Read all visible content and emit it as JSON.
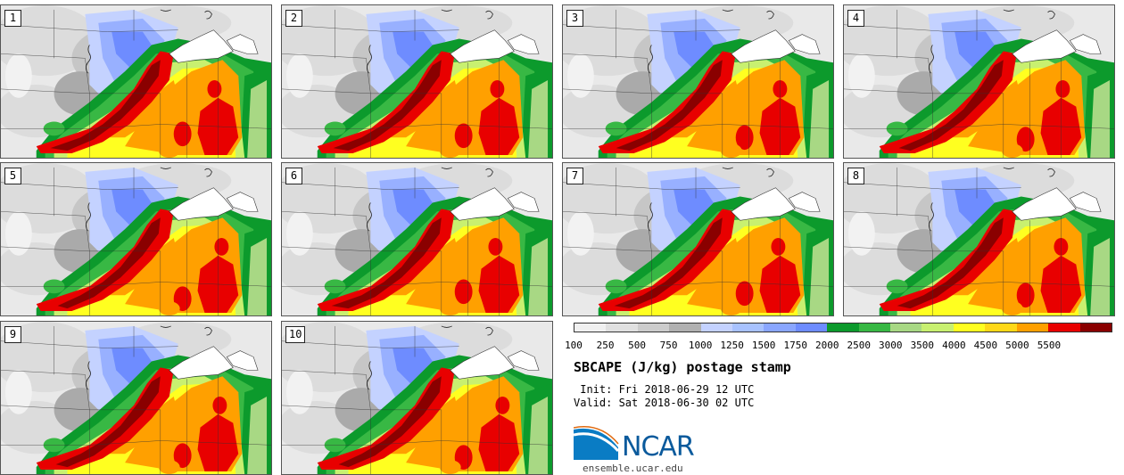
{
  "panels": [
    {
      "label": "1"
    },
    {
      "label": "2"
    },
    {
      "label": "3"
    },
    {
      "label": "4"
    },
    {
      "label": "5"
    },
    {
      "label": "6"
    },
    {
      "label": "7"
    },
    {
      "label": "8"
    },
    {
      "label": "9"
    },
    {
      "label": "10"
    }
  ],
  "colorbar": {
    "colors": [
      "#f0f0f0",
      "#e0e0e0",
      "#cccccc",
      "#b0b0b0",
      "#c4d2ff",
      "#a8c2ff",
      "#8aa6ff",
      "#6e8cff",
      "#0c9a2c",
      "#38b844",
      "#a8d884",
      "#c8f070",
      "#ffff20",
      "#ffd818",
      "#ffa000",
      "#e80000",
      "#8a0000"
    ],
    "ticks": [
      "100",
      "250",
      "500",
      "750",
      "1000",
      "1250",
      "1500",
      "1750",
      "2000",
      "2500",
      "3000",
      "3500",
      "4000",
      "4500",
      "5000",
      "5500"
    ]
  },
  "title": "SBCAPE (J/kg) postage stamp",
  "init": " Init: Fri 2018-06-29 12 UTC",
  "valid": "Valid: Sat 2018-06-30 02 UTC",
  "logo_text": "NCAR",
  "site": "ensemble.ucar.edu"
}
